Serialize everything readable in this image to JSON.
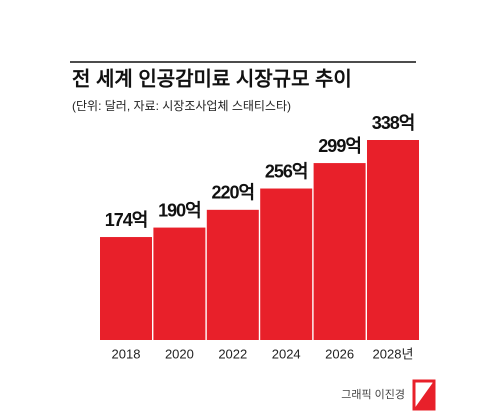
{
  "chart_data": {
    "type": "bar",
    "title": "전 세계 인공감미료 시장규모 추이",
    "subtitle": "(단위: 달러, 자료: 시장조사업체 스태티스타)",
    "categories": [
      "2018",
      "2020",
      "2022",
      "2024",
      "2026",
      "2028년"
    ],
    "values": [
      174,
      190,
      220,
      256,
      299,
      338
    ],
    "value_labels": [
      "174억",
      "190억",
      "220억",
      "256억",
      "299억",
      "338억"
    ],
    "color": "#e8202a",
    "credit": "그래픽 이진경"
  }
}
